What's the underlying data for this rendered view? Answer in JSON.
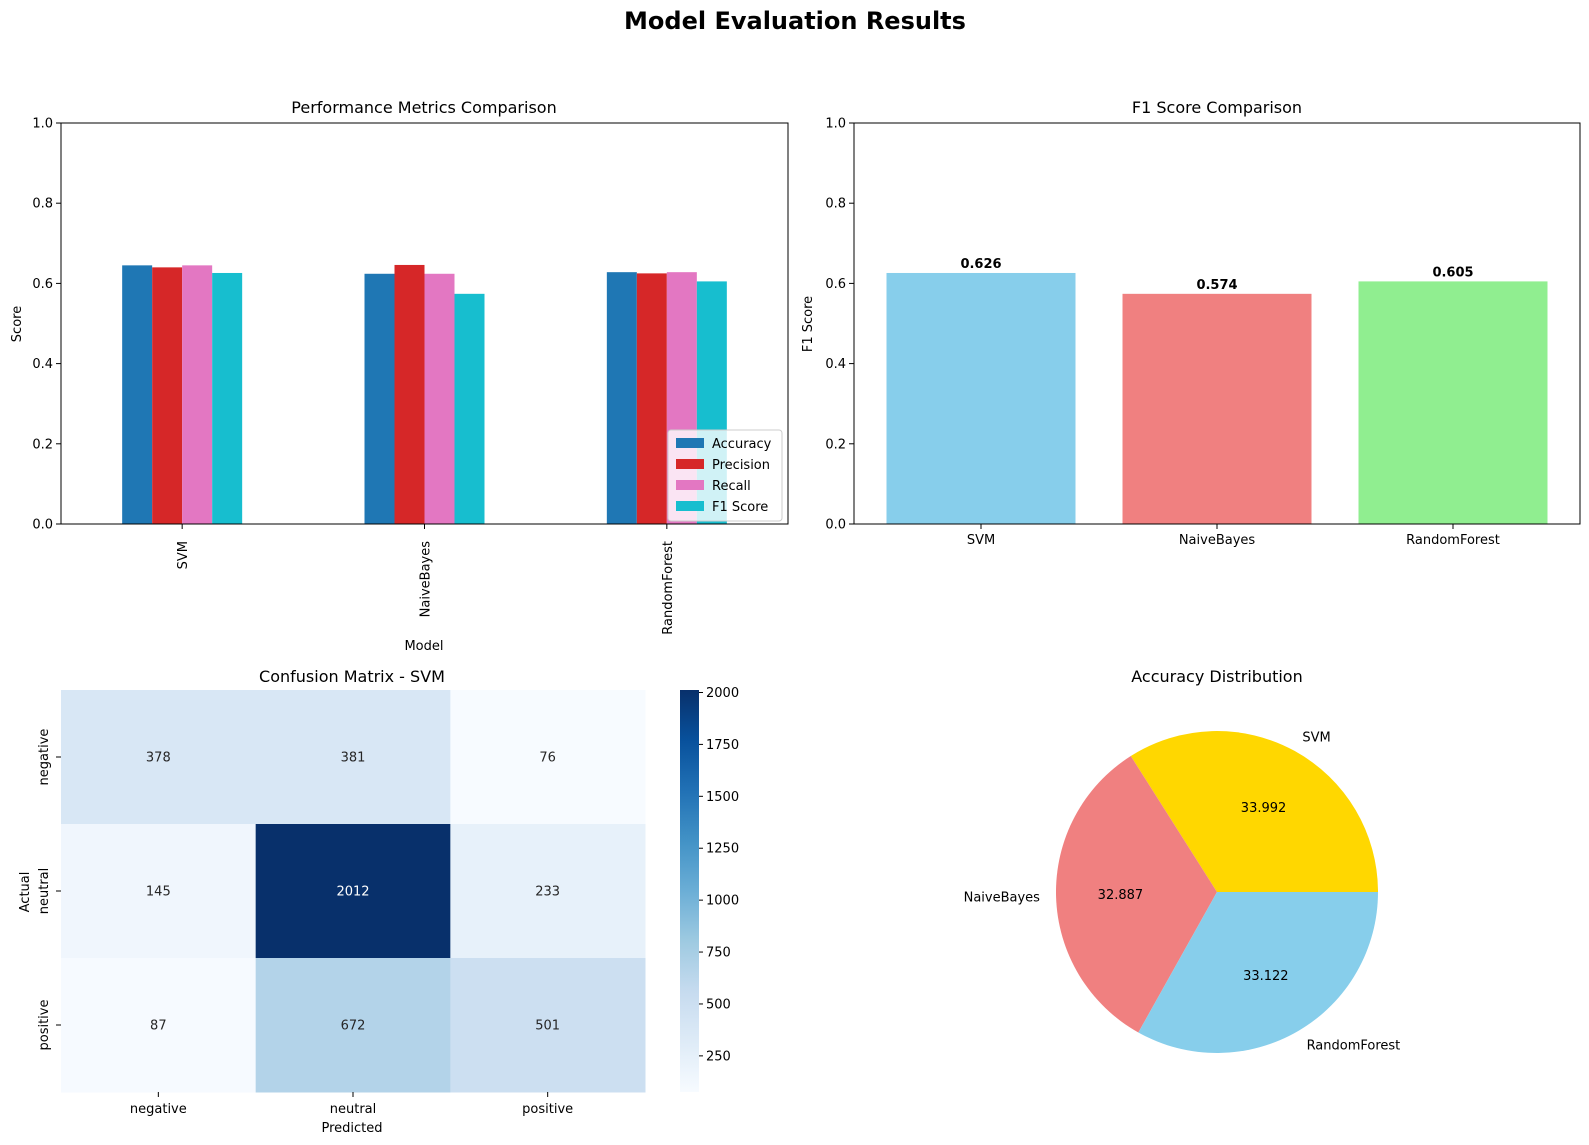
{
  "figure": {
    "suptitle": "Model Evaluation Results"
  },
  "chart_data": [
    {
      "type": "bar",
      "title": "Performance Metrics Comparison",
      "xlabel": "Model",
      "ylabel": "Score",
      "ylim": [
        0,
        1
      ],
      "yticks": [
        "0.0",
        "0.2",
        "0.4",
        "0.6",
        "0.8",
        "1.0"
      ],
      "categories": [
        "SVM",
        "NaiveBayes",
        "RandomForest"
      ],
      "legend_position": "lower-right",
      "series": [
        {
          "name": "Accuracy",
          "color": "#1f77b4",
          "values": [
            0.645,
            0.624,
            0.628
          ]
        },
        {
          "name": "Precision",
          "color": "#d62728",
          "values": [
            0.64,
            0.646,
            0.625
          ]
        },
        {
          "name": "Recall",
          "color": "#e377c2",
          "values": [
            0.645,
            0.624,
            0.628
          ]
        },
        {
          "name": "F1 Score",
          "color": "#17becf",
          "values": [
            0.626,
            0.574,
            0.605
          ]
        }
      ]
    },
    {
      "type": "bar",
      "title": "F1 Score Comparison",
      "xlabel": "",
      "ylabel": "F1 Score",
      "ylim": [
        0,
        1
      ],
      "yticks": [
        "0.0",
        "0.2",
        "0.4",
        "0.6",
        "0.8",
        "1.0"
      ],
      "categories": [
        "SVM",
        "NaiveBayes",
        "RandomForest"
      ],
      "values": [
        0.626,
        0.574,
        0.605
      ],
      "value_labels": [
        "0.626",
        "0.574",
        "0.605"
      ],
      "colors": [
        "#87ceeb",
        "#f08080",
        "#90ee90"
      ]
    },
    {
      "type": "heatmap",
      "title": "Confusion Matrix - SVM",
      "xlabel": "Predicted",
      "ylabel": "Actual",
      "x_categories": [
        "negative",
        "neutral",
        "positive"
      ],
      "y_categories": [
        "negative",
        "neutral",
        "positive"
      ],
      "values": [
        [
          378,
          381,
          76
        ],
        [
          145,
          2012,
          233
        ],
        [
          87,
          672,
          501
        ]
      ],
      "colormap": "Blues",
      "colorbar_range": [
        76,
        2012
      ],
      "colorbar_ticks": [
        "250",
        "500",
        "750",
        "1000",
        "1250",
        "1500",
        "1750",
        "2000"
      ]
    },
    {
      "type": "pie",
      "title": "Accuracy Distribution",
      "labels": [
        "SVM",
        "NaiveBayes",
        "RandomForest"
      ],
      "values": [
        33.992,
        32.887,
        33.122
      ],
      "value_labels": [
        "33.992",
        "32.887",
        "33.122"
      ],
      "colors": [
        "#ffd700",
        "#f08080",
        "#87ceeb"
      ]
    }
  ]
}
